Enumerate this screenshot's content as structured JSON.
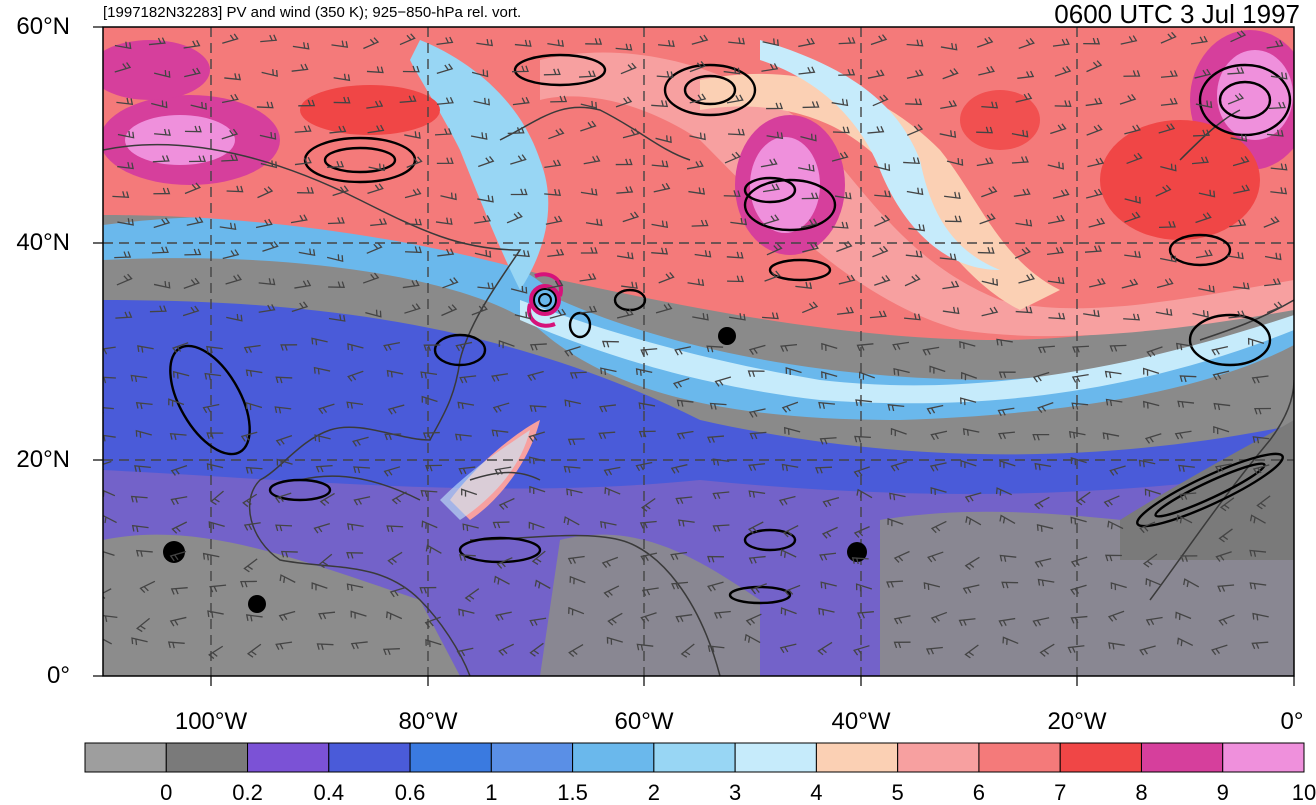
{
  "header": {
    "left_title": "[1997182N32283] PV and wind (350 K); 925−850-hPa rel. vort.",
    "right_title": "0600 UTC 3 Jul 1997"
  },
  "axes": {
    "lat_labels": [
      "60°N",
      "40°N",
      "20°N",
      "0°"
    ],
    "lon_labels": [
      "100°W",
      "80°W",
      "60°W",
      "40°W",
      "20°W",
      "0°"
    ],
    "lat_values": [
      60,
      40,
      20,
      0
    ],
    "lon_values": [
      -100,
      -80,
      -60,
      -40,
      -20,
      0
    ],
    "lat_range": [
      0,
      60
    ],
    "lon_range": [
      -110,
      0
    ],
    "grid": "dashed"
  },
  "colorbar": {
    "tick_labels": [
      "0",
      "0.2",
      "0.4",
      "0.6",
      "1",
      "1.5",
      "2",
      "3",
      "4",
      "5",
      "6",
      "7",
      "8",
      "9",
      "10"
    ],
    "colors": [
      "#9e9e9e",
      "#7a7a7a",
      "#7b52d6",
      "#4a5bd9",
      "#3a7ae0",
      "#5a8fe6",
      "#6ab8ec",
      "#98d6f4",
      "#c6ebfb",
      "#fbd0b4",
      "#f7a0a0",
      "#f47a7a",
      "#f04646",
      "#d63f9c",
      "#ef90dc"
    ]
  },
  "map": {
    "shaded_field": "PV (350 K)",
    "contours": "925−850-hPa rel. vort.",
    "storm_marker_color": "#d6127a"
  }
}
